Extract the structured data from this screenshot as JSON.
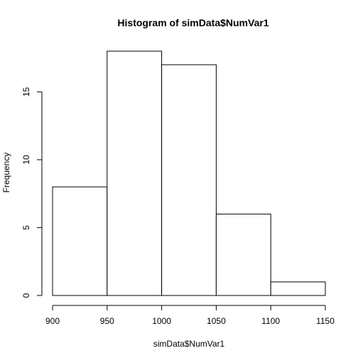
{
  "chart_data": {
    "type": "bar",
    "title": "Histogram of simData$NumVar1",
    "xlabel": "simData$NumVar1",
    "ylabel": "Frequency",
    "bins": [
      {
        "start": 900,
        "end": 950,
        "count": 8
      },
      {
        "start": 950,
        "end": 1000,
        "count": 18
      },
      {
        "start": 1000,
        "end": 1050,
        "count": 17
      },
      {
        "start": 1050,
        "end": 1100,
        "count": 6
      },
      {
        "start": 1100,
        "end": 1150,
        "count": 1
      }
    ],
    "xlim": [
      900,
      1150
    ],
    "ylim": [
      0,
      18
    ],
    "x_ticks": [
      900,
      950,
      1000,
      1050,
      1100,
      1150
    ],
    "y_ticks": [
      0,
      5,
      10,
      15
    ],
    "grid": false
  }
}
